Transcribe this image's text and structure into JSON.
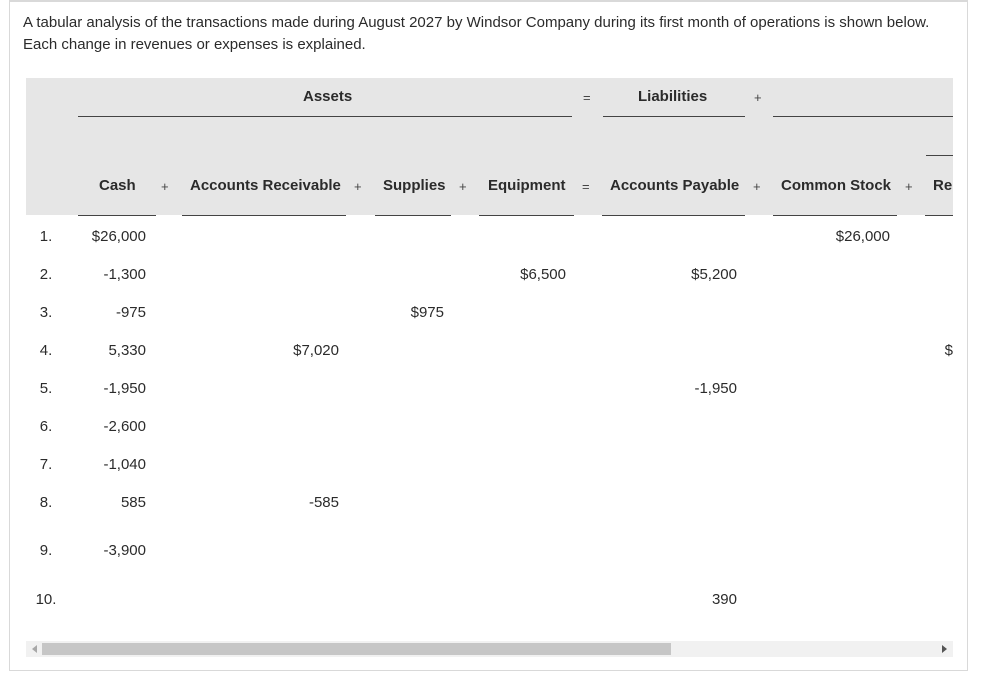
{
  "intro": "A tabular analysis of the transactions made during August 2027 by Windsor Company during its first month of operations is shown below. Each change in revenues or expenses is explained.",
  "groups": {
    "assets": "Assets",
    "eq1": "=",
    "liabilities": "Liabilities",
    "plus1": "+"
  },
  "columns": {
    "cash": "Cash",
    "plus_a": "+",
    "ar": "Accounts Receivable",
    "plus_b": "+",
    "supplies": "Supplies",
    "plus_c": "+",
    "equipment": "Equipment",
    "eq2": "=",
    "ap": "Accounts Payable",
    "plus_d": "+",
    "cs": "Common Stock",
    "plus_e": "+",
    "re": "Re"
  },
  "rows": [
    {
      "n": "1.",
      "cash": "$26,000",
      "ar": "",
      "supplies": "",
      "equipment": "",
      "ap": "",
      "cs": "$26,000",
      "re": ""
    },
    {
      "n": "2.",
      "cash": "-1,300",
      "ar": "",
      "supplies": "",
      "equipment": "$6,500",
      "ap": "$5,200",
      "cs": "",
      "re": ""
    },
    {
      "n": "3.",
      "cash": "-975",
      "ar": "",
      "supplies": "$975",
      "equipment": "",
      "ap": "",
      "cs": "",
      "re": ""
    },
    {
      "n": "4.",
      "cash": "5,330",
      "ar": "$7,020",
      "supplies": "",
      "equipment": "",
      "ap": "",
      "cs": "",
      "re": "$"
    },
    {
      "n": "5.",
      "cash": "-1,950",
      "ar": "",
      "supplies": "",
      "equipment": "",
      "ap": "-1,950",
      "cs": "",
      "re": ""
    },
    {
      "n": "6.",
      "cash": "-2,600",
      "ar": "",
      "supplies": "",
      "equipment": "",
      "ap": "",
      "cs": "",
      "re": ""
    },
    {
      "n": "7.",
      "cash": "-1,040",
      "ar": "",
      "supplies": "",
      "equipment": "",
      "ap": "",
      "cs": "",
      "re": ""
    },
    {
      "n": "8.",
      "cash": "585",
      "ar": "-585",
      "supplies": "",
      "equipment": "",
      "ap": "",
      "cs": "",
      "re": ""
    },
    {
      "n": "9.",
      "cash": "-3,900",
      "ar": "",
      "supplies": "",
      "equipment": "",
      "ap": "",
      "cs": "",
      "re": ""
    },
    {
      "n": "10.",
      "cash": "",
      "ar": "",
      "supplies": "",
      "equipment": "",
      "ap": "390",
      "cs": "",
      "re": ""
    }
  ]
}
